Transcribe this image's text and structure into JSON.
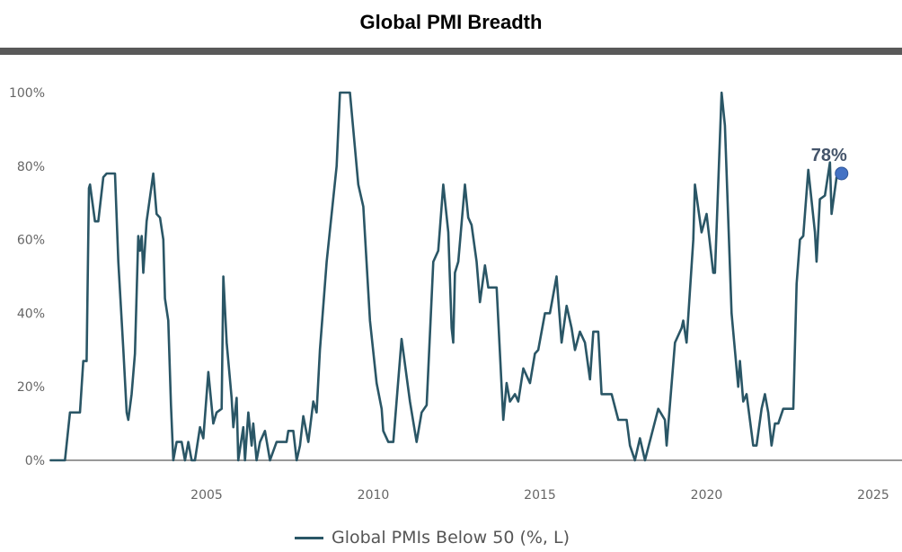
{
  "chart_data": {
    "type": "line",
    "title": "Global PMI Breadth",
    "xlabel": "",
    "ylabel": "",
    "x_ticks": [
      "2005",
      "2010",
      "2015",
      "2020",
      "2025"
    ],
    "y_ticks": [
      "0%",
      "20%",
      "40%",
      "60%",
      "80%",
      "100%"
    ],
    "xlim": [
      1998.8,
      2025.85
    ],
    "ylim": [
      0,
      100
    ],
    "grid": false,
    "legend_position": "bottom",
    "colors": {
      "line": "#2a5666",
      "marker": "#4472c4",
      "annotation": "#44546a",
      "axis": "#999999"
    },
    "series": [
      {
        "name": "Global PMIs Below 50 (%, L)",
        "points": [
          [
            2000.3,
            0
          ],
          [
            2000.75,
            0
          ],
          [
            2000.9,
            13
          ],
          [
            2001.2,
            13
          ],
          [
            2001.3,
            27
          ],
          [
            2001.4,
            27
          ],
          [
            2001.47,
            74
          ],
          [
            2001.5,
            75
          ],
          [
            2001.65,
            65
          ],
          [
            2001.75,
            65
          ],
          [
            2001.9,
            77
          ],
          [
            2002.0,
            78
          ],
          [
            2002.25,
            78
          ],
          [
            2002.35,
            54
          ],
          [
            2002.5,
            30
          ],
          [
            2002.6,
            13
          ],
          [
            2002.65,
            11
          ],
          [
            2002.75,
            18
          ],
          [
            2002.85,
            29
          ],
          [
            2002.95,
            61
          ],
          [
            2003.0,
            57
          ],
          [
            2003.05,
            61
          ],
          [
            2003.1,
            51
          ],
          [
            2003.2,
            65
          ],
          [
            2003.4,
            78
          ],
          [
            2003.5,
            67
          ],
          [
            2003.6,
            66
          ],
          [
            2003.7,
            60
          ],
          [
            2003.75,
            44
          ],
          [
            2003.85,
            38
          ],
          [
            2003.93,
            15
          ],
          [
            2004.0,
            0
          ],
          [
            2004.1,
            5
          ],
          [
            2004.25,
            5
          ],
          [
            2004.35,
            0
          ],
          [
            2004.45,
            5
          ],
          [
            2004.55,
            0
          ],
          [
            2004.65,
            0
          ],
          [
            2004.8,
            9
          ],
          [
            2004.9,
            6
          ],
          [
            2005.05,
            24
          ],
          [
            2005.2,
            10
          ],
          [
            2005.3,
            13
          ],
          [
            2005.45,
            14
          ],
          [
            2005.5,
            50
          ],
          [
            2005.6,
            32
          ],
          [
            2005.75,
            17
          ],
          [
            2005.8,
            9
          ],
          [
            2005.9,
            17
          ],
          [
            2005.95,
            0
          ],
          [
            2006.1,
            9
          ],
          [
            2006.15,
            0
          ],
          [
            2006.25,
            13
          ],
          [
            2006.35,
            4
          ],
          [
            2006.4,
            10
          ],
          [
            2006.5,
            0
          ],
          [
            2006.6,
            5
          ],
          [
            2006.75,
            8
          ],
          [
            2006.9,
            0
          ],
          [
            2007.1,
            5
          ],
          [
            2007.4,
            5
          ],
          [
            2007.45,
            8
          ],
          [
            2007.6,
            8
          ],
          [
            2007.7,
            0
          ],
          [
            2007.8,
            4
          ],
          [
            2007.9,
            12
          ],
          [
            2008.05,
            5
          ],
          [
            2008.2,
            16
          ],
          [
            2008.3,
            13
          ],
          [
            2008.4,
            30
          ],
          [
            2008.6,
            54
          ],
          [
            2008.9,
            80
          ],
          [
            2009.0,
            100
          ],
          [
            2009.3,
            100
          ],
          [
            2009.55,
            75
          ],
          [
            2009.7,
            69
          ],
          [
            2009.9,
            38
          ],
          [
            2010.1,
            21
          ],
          [
            2010.25,
            14
          ],
          [
            2010.3,
            8
          ],
          [
            2010.45,
            5
          ],
          [
            2010.6,
            5
          ],
          [
            2010.85,
            33
          ],
          [
            2011.1,
            16
          ],
          [
            2011.3,
            5
          ],
          [
            2011.45,
            13
          ],
          [
            2011.6,
            15
          ],
          [
            2011.8,
            54
          ],
          [
            2011.95,
            57
          ],
          [
            2012.1,
            75
          ],
          [
            2012.25,
            62
          ],
          [
            2012.35,
            36
          ],
          [
            2012.4,
            32
          ],
          [
            2012.45,
            51
          ],
          [
            2012.55,
            54
          ],
          [
            2012.75,
            75
          ],
          [
            2012.85,
            66
          ],
          [
            2012.95,
            64
          ],
          [
            2013.1,
            54
          ],
          [
            2013.2,
            43
          ],
          [
            2013.35,
            53
          ],
          [
            2013.45,
            47
          ],
          [
            2013.7,
            47
          ],
          [
            2013.9,
            11
          ],
          [
            2014.0,
            21
          ],
          [
            2014.1,
            16
          ],
          [
            2014.25,
            18
          ],
          [
            2014.35,
            16
          ],
          [
            2014.5,
            25
          ],
          [
            2014.7,
            21
          ],
          [
            2014.85,
            29
          ],
          [
            2014.95,
            30
          ],
          [
            2015.15,
            40
          ],
          [
            2015.3,
            40
          ],
          [
            2015.5,
            50
          ],
          [
            2015.65,
            32
          ],
          [
            2015.8,
            42
          ],
          [
            2015.95,
            36
          ],
          [
            2016.05,
            30
          ],
          [
            2016.2,
            35
          ],
          [
            2016.35,
            32
          ],
          [
            2016.5,
            22
          ],
          [
            2016.6,
            35
          ],
          [
            2016.75,
            35
          ],
          [
            2016.85,
            18
          ],
          [
            2017.15,
            18
          ],
          [
            2017.35,
            11
          ],
          [
            2017.6,
            11
          ],
          [
            2017.7,
            4
          ],
          [
            2017.85,
            0
          ],
          [
            2018.0,
            6
          ],
          [
            2018.15,
            0
          ],
          [
            2018.55,
            14
          ],
          [
            2018.75,
            11
          ],
          [
            2018.8,
            4
          ],
          [
            2019.05,
            32
          ],
          [
            2019.25,
            36
          ],
          [
            2019.3,
            38
          ],
          [
            2019.4,
            32
          ],
          [
            2019.6,
            60
          ],
          [
            2019.65,
            75
          ],
          [
            2019.85,
            62
          ],
          [
            2020.0,
            67
          ],
          [
            2020.2,
            51
          ],
          [
            2020.25,
            51
          ],
          [
            2020.45,
            100
          ],
          [
            2020.55,
            91
          ],
          [
            2020.75,
            40
          ],
          [
            2020.95,
            20
          ],
          [
            2021.0,
            27
          ],
          [
            2021.1,
            16
          ],
          [
            2021.2,
            18
          ],
          [
            2021.4,
            4
          ],
          [
            2021.5,
            4
          ],
          [
            2021.65,
            14
          ],
          [
            2021.75,
            18
          ],
          [
            2021.85,
            13
          ],
          [
            2021.95,
            4
          ],
          [
            2022.05,
            10
          ],
          [
            2022.15,
            10
          ],
          [
            2022.3,
            14
          ],
          [
            2022.6,
            14
          ],
          [
            2022.7,
            48
          ],
          [
            2022.8,
            60
          ],
          [
            2022.9,
            61
          ],
          [
            2023.05,
            79
          ],
          [
            2023.25,
            62
          ],
          [
            2023.3,
            54
          ],
          [
            2023.4,
            71
          ],
          [
            2023.55,
            72
          ],
          [
            2023.7,
            81
          ],
          [
            2023.75,
            67
          ],
          [
            2023.9,
            77
          ]
        ]
      }
    ],
    "annotations": [
      {
        "x": 2024.05,
        "y": 78,
        "label": "78%"
      }
    ]
  }
}
